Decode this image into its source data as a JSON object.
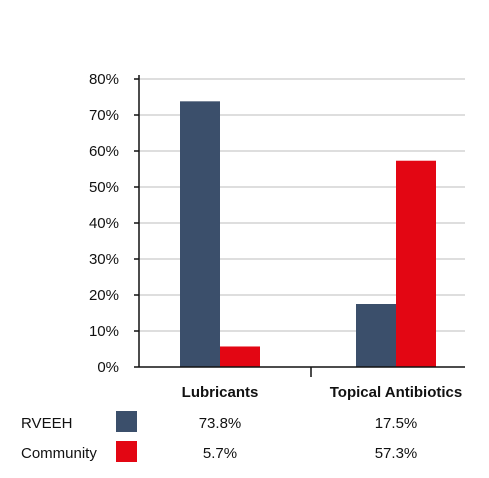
{
  "colors": {
    "RVEEH": "#3b4f6b",
    "Community": "#e30613",
    "grid": "#bdbdbd",
    "axis": "#111111"
  },
  "chart_data": {
    "type": "bar",
    "categories": [
      "Lubricants",
      "Topical Antibiotics"
    ],
    "series": [
      {
        "name": "RVEEH",
        "values": [
          73.8,
          17.5
        ],
        "labels": [
          "73.8%",
          "17.5%"
        ]
      },
      {
        "name": "Community",
        "values": [
          5.7,
          57.3
        ],
        "labels": [
          "5.7%",
          "57.3%"
        ]
      }
    ],
    "ylim": [
      0,
      80
    ],
    "yticks": [
      0,
      10,
      20,
      30,
      40,
      50,
      60,
      70,
      80
    ],
    "ytick_labels": [
      "0%",
      "10%",
      "20%",
      "30%",
      "40%",
      "50%",
      "60%",
      "70%",
      "80%"
    ],
    "grid": true,
    "legend_placement": "data table below chart",
    "title": "",
    "xlabel": "",
    "ylabel": ""
  }
}
